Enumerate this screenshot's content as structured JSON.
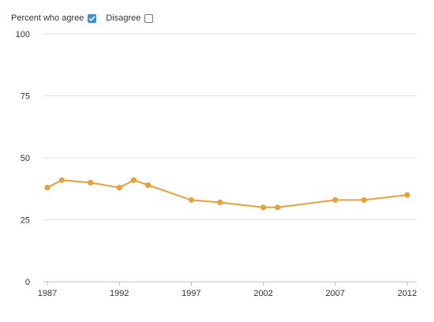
{
  "legend": {
    "agree_label": "Percent who agree",
    "agree_checked": true,
    "disagree_label": "Disagree",
    "disagree_checked": false
  },
  "colors": {
    "line": "#e6a13a",
    "grid": "#e2e2e2",
    "axis": "#bbbbbb",
    "checkbox_checked": "#3a8dde"
  },
  "chart_data": {
    "type": "line",
    "title": "",
    "xlabel": "",
    "ylabel": "",
    "xlim": [
      1987,
      2012
    ],
    "ylim": [
      0,
      100
    ],
    "y_ticks": [
      0,
      25,
      50,
      75,
      100
    ],
    "x_ticks": [
      1987,
      1992,
      1997,
      2002,
      2007,
      2012
    ],
    "grid": true,
    "legend_position": "top-left",
    "series": [
      {
        "name": "Percent who agree",
        "x": [
          1987,
          1988,
          1990,
          1992,
          1993,
          1994,
          1997,
          1999,
          2002,
          2003,
          2007,
          2009,
          2012
        ],
        "values": [
          38,
          41,
          40,
          38,
          41,
          39,
          33,
          32,
          30,
          30,
          33,
          33,
          35
        ]
      }
    ]
  }
}
